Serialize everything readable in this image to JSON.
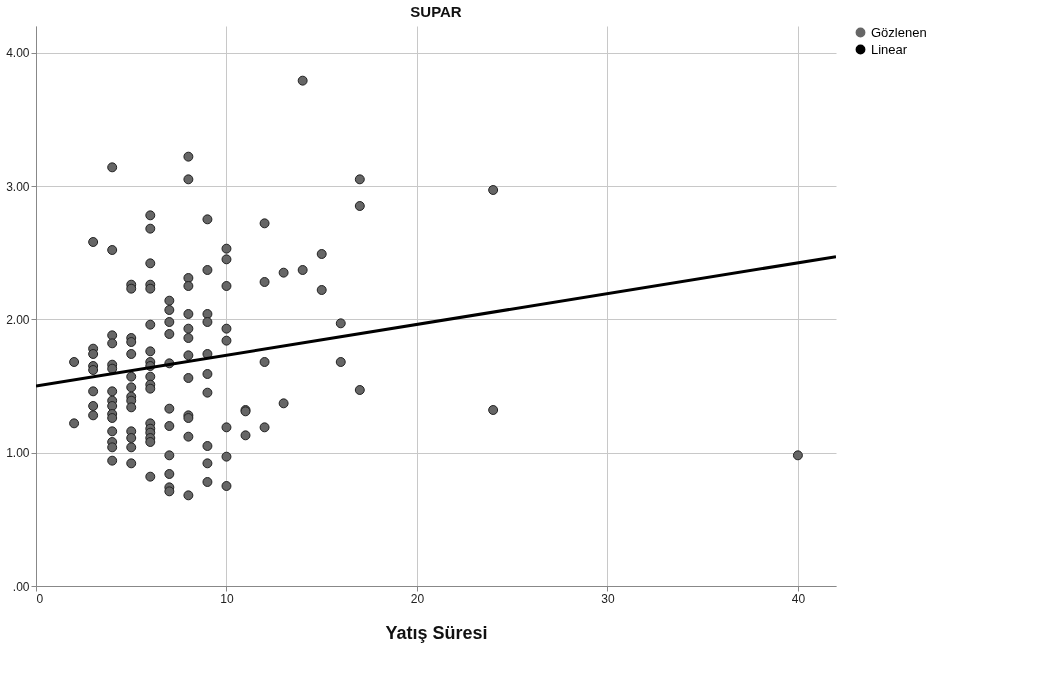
{
  "chart_data": {
    "type": "scatter",
    "title": "SUPAR",
    "xlabel": "Yatış Süresi",
    "xlim": [
      0,
      42
    ],
    "ylim": [
      0,
      4.2
    ],
    "xticks": [
      0,
      10,
      20,
      30,
      40
    ],
    "yticks": [
      {
        "value": 0,
        "label": ".00"
      },
      {
        "value": 1,
        "label": "1.00"
      },
      {
        "value": 2,
        "label": "2.00"
      },
      {
        "value": 3,
        "label": "3.00"
      },
      {
        "value": 4,
        "label": "4.00"
      }
    ],
    "grid": true,
    "legend": "top right",
    "series": [
      {
        "name": "Gözlenen",
        "marker": "circle",
        "color": "#666666",
        "x": [
          2,
          2,
          3,
          3,
          3,
          3,
          3,
          3,
          3,
          3,
          4,
          4,
          4,
          4,
          4,
          4,
          4,
          4,
          4,
          4,
          4,
          4,
          4,
          4,
          4,
          5,
          5,
          5,
          5,
          5,
          5,
          5,
          5,
          5,
          5,
          5,
          5,
          5,
          5,
          6,
          6,
          6,
          6,
          6,
          6,
          6,
          6,
          6,
          6,
          6,
          6,
          6,
          6,
          6,
          6,
          6,
          6,
          7,
          7,
          7,
          7,
          7,
          7,
          7,
          7,
          7,
          7,
          7,
          8,
          8,
          8,
          8,
          8,
          8,
          8,
          8,
          8,
          8,
          8,
          8,
          8,
          9,
          9,
          9,
          9,
          9,
          9,
          9,
          9,
          9,
          9,
          10,
          10,
          10,
          10,
          10,
          10,
          10,
          10,
          11,
          11,
          11,
          12,
          12,
          12,
          12,
          13,
          13,
          14,
          14,
          15,
          15,
          16,
          16,
          17,
          17,
          17,
          24,
          24,
          40
        ],
        "values": [
          1.68,
          1.22,
          2.58,
          1.78,
          1.74,
          1.65,
          1.62,
          1.46,
          1.35,
          1.28,
          3.14,
          2.52,
          1.88,
          1.82,
          1.66,
          1.63,
          1.46,
          1.39,
          1.35,
          1.29,
          1.26,
          1.16,
          1.08,
          1.04,
          0.94,
          2.26,
          2.23,
          1.86,
          1.83,
          1.74,
          1.57,
          1.49,
          1.42,
          1.39,
          1.34,
          1.16,
          1.11,
          1.04,
          0.92,
          2.78,
          2.68,
          2.42,
          2.26,
          2.23,
          1.96,
          1.76,
          1.68,
          1.65,
          1.57,
          1.51,
          1.48,
          1.22,
          1.18,
          1.15,
          1.11,
          1.08,
          0.82,
          2.14,
          2.07,
          1.98,
          1.89,
          1.67,
          1.33,
          1.2,
          0.98,
          0.84,
          0.74,
          0.71,
          3.22,
          3.05,
          2.31,
          2.25,
          2.04,
          1.93,
          1.86,
          1.73,
          1.56,
          1.28,
          1.26,
          1.12,
          0.68,
          2.75,
          2.37,
          2.04,
          1.98,
          1.74,
          1.59,
          1.45,
          1.05,
          0.92,
          0.78,
          2.53,
          2.45,
          2.25,
          1.93,
          1.84,
          1.19,
          0.97,
          0.75,
          1.32,
          1.31,
          1.13,
          2.72,
          2.28,
          1.68,
          1.19,
          2.35,
          1.37,
          3.79,
          2.37,
          2.49,
          2.22,
          1.97,
          1.68,
          3.05,
          2.85,
          1.47,
          2.97,
          1.32,
          0.98
        ]
      },
      {
        "name": "Linear",
        "type": "line",
        "color": "#000000",
        "x": [
          0,
          42
        ],
        "values": [
          1.5,
          2.47
        ]
      }
    ]
  }
}
